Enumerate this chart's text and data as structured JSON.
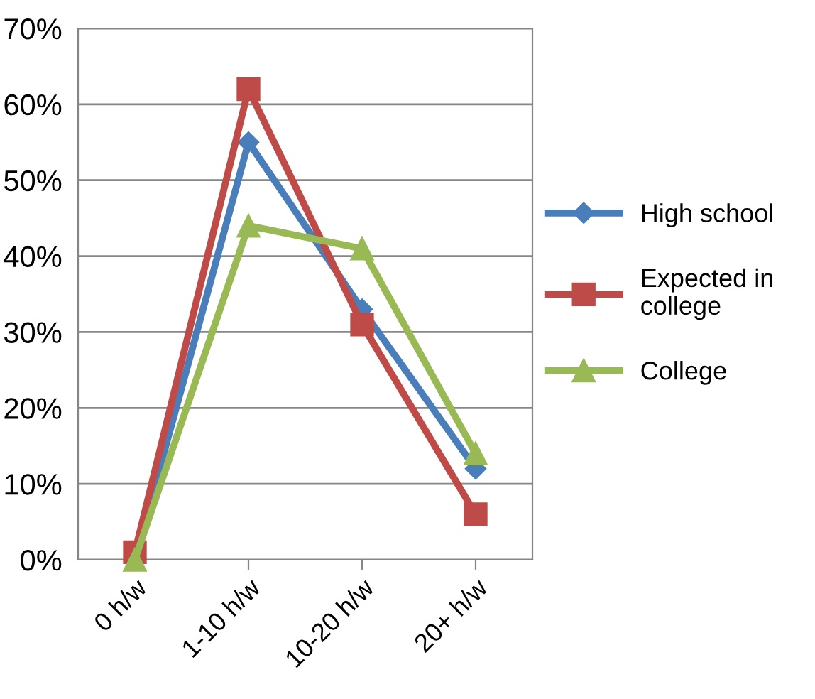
{
  "chart_data": {
    "type": "line",
    "categories": [
      "0 h/w",
      "1-10 h/w",
      "10-20 h/w",
      "20+ h/w"
    ],
    "series": [
      {
        "name": "High school",
        "color": "#4a7ebb",
        "marker": "diamond",
        "values": [
          0,
          55,
          33,
          12
        ]
      },
      {
        "name": "Expected in college",
        "color": "#be4b48",
        "marker": "square",
        "values": [
          1,
          62,
          31,
          6
        ]
      },
      {
        "name": "College",
        "color": "#98b954",
        "marker": "triangle",
        "values": [
          0,
          44,
          41,
          14
        ]
      }
    ],
    "ylim": [
      0,
      70
    ],
    "yticks": [
      {
        "value": 0,
        "label": "0%"
      },
      {
        "value": 10,
        "label": "10%"
      },
      {
        "value": 20,
        "label": "20%"
      },
      {
        "value": 30,
        "label": "30%"
      },
      {
        "value": 40,
        "label": "40%"
      },
      {
        "value": 50,
        "label": "50%"
      },
      {
        "value": 60,
        "label": "60%"
      },
      {
        "value": 70,
        "label": "70%"
      }
    ],
    "grid": "y",
    "legend": "right",
    "line_style": "solid"
  }
}
